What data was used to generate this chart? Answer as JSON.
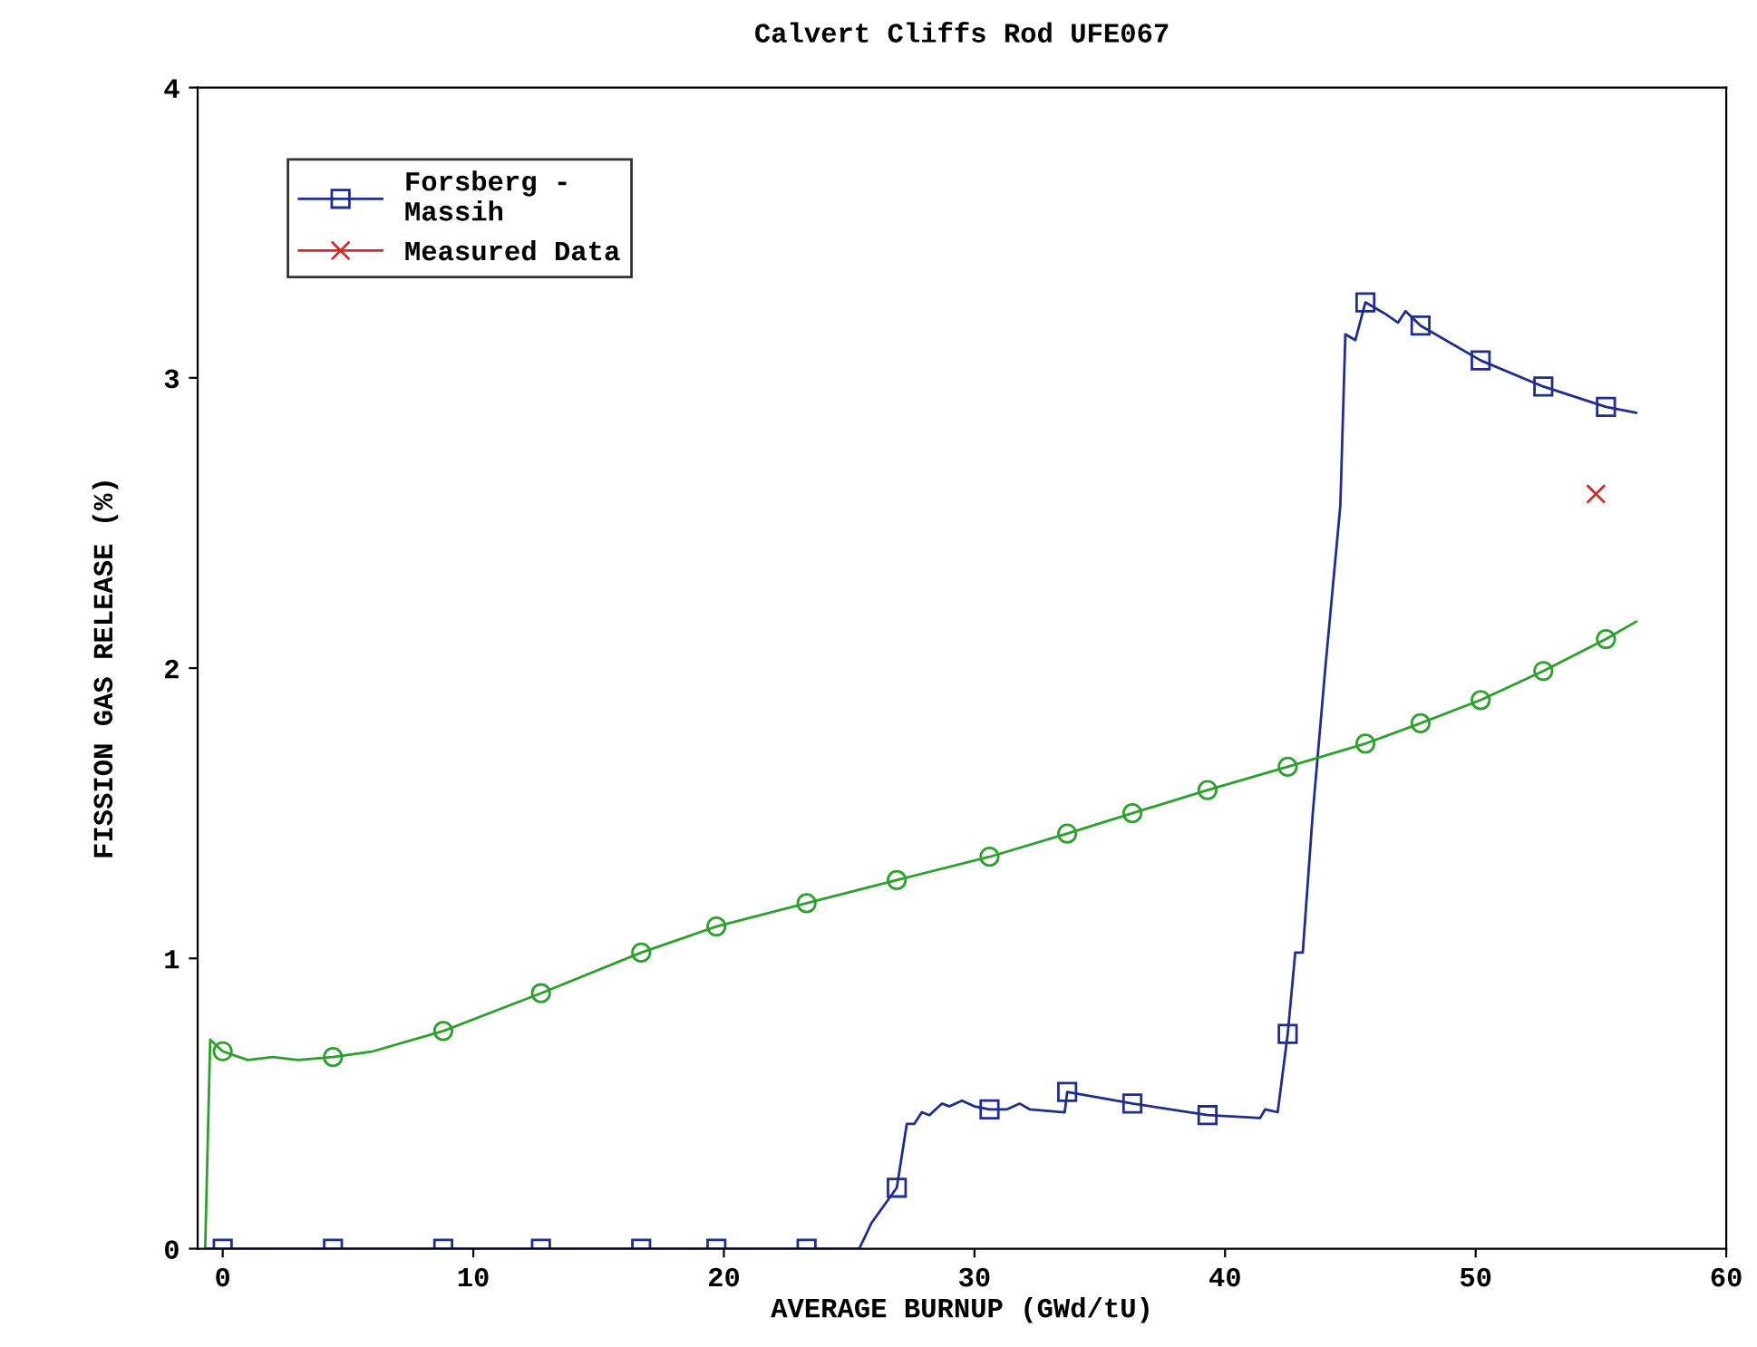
{
  "chart_data": {
    "type": "line",
    "title": "Calvert Cliffs Rod UFE067",
    "xlabel": "AVERAGE BURNUP (GWd/tU)",
    "ylabel": "FISSION GAS RELEASE (%)",
    "xlim": [
      -1,
      60
    ],
    "xticks": [
      0,
      10,
      20,
      30,
      40,
      50,
      60
    ],
    "ylim": [
      0,
      4
    ],
    "yticks": [
      0,
      1,
      2,
      3,
      4
    ],
    "grid": false,
    "legend": "top left",
    "series": [
      {
        "name": "Forsberg -\nMassih",
        "color": "#1f2e8c",
        "marker": "none",
        "x": [
          -0.7,
          25.4,
          25.9,
          26.9,
          27.3,
          27.6,
          27.9,
          28.2,
          28.7,
          29,
          29.5,
          30,
          30.6,
          31.3,
          31.8,
          32.2,
          33.6,
          33.7,
          36.3,
          39.3,
          41.4,
          41.6,
          42.1,
          42.5,
          42.8,
          43.1,
          43.5,
          44,
          44.6,
          44.8,
          45.2,
          45.6,
          46.4,
          46.9,
          47.2,
          47.8,
          50.2,
          52.7,
          55.2,
          56.4
        ],
        "values": [
          0,
          0,
          0.09,
          0.21,
          0.43,
          0.43,
          0.47,
          0.46,
          0.5,
          0.49,
          0.51,
          0.49,
          0.48,
          0.48,
          0.5,
          0.48,
          0.47,
          0.54,
          0.5,
          0.46,
          0.45,
          0.48,
          0.47,
          0.74,
          1.02,
          1.02,
          1.5,
          2.0,
          2.56,
          3.15,
          3.13,
          3.26,
          3.22,
          3.19,
          3.23,
          3.18,
          3.06,
          2.97,
          2.9,
          2.88
        ]
      },
      {
        "color": "#1f2e8c",
        "type": "scatter",
        "marker": "square",
        "x": [
          0,
          4.4,
          8.8,
          12.7,
          16.7,
          19.7,
          23.3,
          26.9,
          30.6,
          33.7,
          36.3,
          39.3,
          42.5,
          45.6,
          47.8,
          50.2,
          52.7,
          55.2
        ],
        "values": [
          0,
          0,
          0,
          0,
          0,
          0,
          0,
          0.21,
          0.48,
          0.54,
          0.5,
          0.46,
          0.74,
          3.26,
          3.18,
          3.06,
          2.97,
          2.9
        ]
      },
      {
        "color": "#2ca02c",
        "marker": "none",
        "x": [
          -0.7,
          -0.5,
          0,
          1,
          2,
          3,
          4.4,
          6,
          8.8,
          12.7,
          16.7,
          19.7,
          23.3,
          26.9,
          30.6,
          33.7,
          36.3,
          39.3,
          42.5,
          45.6,
          47.8,
          50.2,
          52.7,
          55.2,
          56.4
        ],
        "values": [
          0,
          0.72,
          0.68,
          0.65,
          0.66,
          0.65,
          0.66,
          0.68,
          0.75,
          0.88,
          1.02,
          1.11,
          1.19,
          1.27,
          1.35,
          1.43,
          1.5,
          1.58,
          1.66,
          1.74,
          1.81,
          1.89,
          1.99,
          2.1,
          2.16
        ]
      },
      {
        "color": "#2ca02c",
        "type": "scatter",
        "marker": "circle",
        "x": [
          0,
          4.4,
          8.8,
          12.7,
          16.7,
          19.7,
          23.3,
          26.9,
          30.6,
          33.7,
          36.3,
          39.3,
          42.5,
          45.6,
          47.8,
          50.2,
          52.7,
          55.2
        ],
        "values": [
          0.68,
          0.66,
          0.75,
          0.88,
          1.02,
          1.11,
          1.19,
          1.27,
          1.35,
          1.43,
          1.5,
          1.58,
          1.66,
          1.74,
          1.81,
          1.89,
          1.99,
          2.1
        ]
      },
      {
        "name": "Measured Data",
        "color": "#d62728",
        "type": "scatter",
        "marker": "cross",
        "x": [
          54.8
        ],
        "values": [
          2.6
        ]
      }
    ]
  }
}
